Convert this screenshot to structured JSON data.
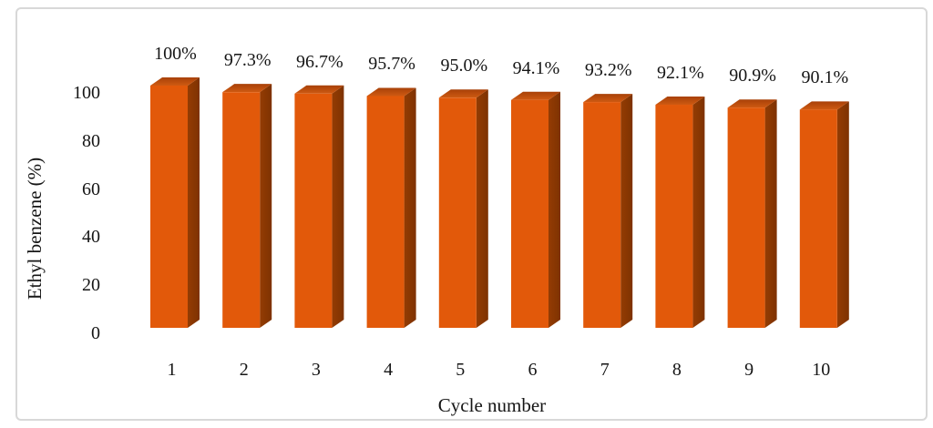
{
  "chart_data": {
    "type": "bar",
    "style": "3d-column",
    "title": "",
    "xlabel": "Cycle number",
    "ylabel": "Ethyl benzene (%)",
    "categories": [
      "1",
      "2",
      "3",
      "4",
      "5",
      "6",
      "7",
      "8",
      "9",
      "10"
    ],
    "values": [
      100,
      97.3,
      96.7,
      95.7,
      95.0,
      94.1,
      93.2,
      92.1,
      90.9,
      90.1
    ],
    "data_labels": [
      "100%",
      "97.3%",
      "96.7%",
      "95.7%",
      "95.0%",
      "94.1%",
      "93.2%",
      "92.1%",
      "90.9%",
      "90.1%"
    ],
    "y_ticks": [
      0,
      20,
      40,
      60,
      80,
      100
    ],
    "ylim": [
      0,
      100
    ],
    "grid": false,
    "legend": false,
    "colors": {
      "bar_front": "#E2590A",
      "bar_side": "#943C03",
      "bar_top_back": "#A84108",
      "bar_top_front": "#CE5A12",
      "text": "#151515",
      "frame_border": "#D8D8D8",
      "background": "#FFFFFF"
    }
  }
}
